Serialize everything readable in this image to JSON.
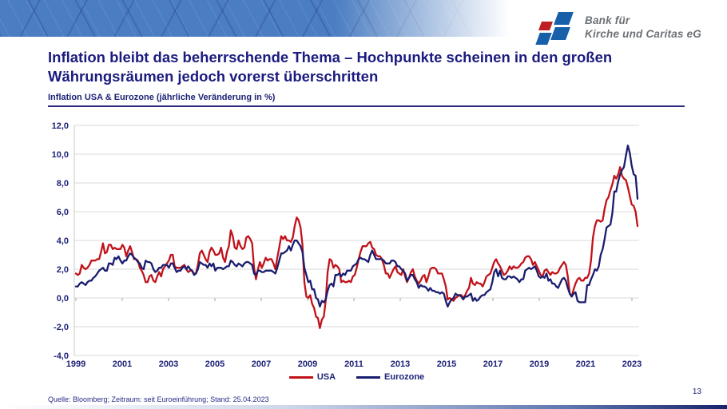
{
  "banner": {
    "logo_line1": "Bank für",
    "logo_line2": "Kirche und Caritas eG"
  },
  "slide": {
    "title": "Inflation bleibt das beherrschende Thema – Hochpunkte scheinen in den großen Währungsräumen jedoch vorerst überschritten",
    "source": "Quelle: Bloomberg; Zeitraum: seit Euroeinführung; Stand: 25.04.2023",
    "page_number": "13"
  },
  "colors": {
    "banner_blue": "#4b7dc2",
    "headline_navy": "#1b1b80",
    "usa_red": "#c1121a",
    "eurozone_navy": "#1a1d6e",
    "logo_red": "#bd1f22",
    "logo_blue": "#175fa9",
    "gridline_gray": "#d9d9d9"
  },
  "chart_data": {
    "type": "line",
    "title": "Inflation USA & Eurozone (jährliche Veränderung in %)",
    "x_unit": "monthly, Jan 1999 – Mar 2023",
    "x_ticks": [
      "1999",
      "2001",
      "2003",
      "2005",
      "2007",
      "2009",
      "2011",
      "2013",
      "2015",
      "2017",
      "2019",
      "2021",
      "2023"
    ],
    "y_ticks": [
      "12,0",
      "10,0",
      "8,0",
      "6,0",
      "4,0",
      "2,0",
      "0,0",
      "-2,0",
      "-4,0"
    ],
    "ylim": [
      -4,
      12
    ],
    "grid": true,
    "legend_position": "bottom",
    "series": [
      {
        "name": "USA",
        "color": "#c1121a",
        "values": [
          1.7,
          1.6,
          1.7,
          2.3,
          2.1,
          2.0,
          2.1,
          2.3,
          2.6,
          2.6,
          2.6,
          2.7,
          2.7,
          3.2,
          3.8,
          3.1,
          3.2,
          3.7,
          3.7,
          3.4,
          3.5,
          3.4,
          3.4,
          3.4,
          3.7,
          3.5,
          2.9,
          3.3,
          3.6,
          3.2,
          2.7,
          2.7,
          2.6,
          2.1,
          1.9,
          1.6,
          1.1,
          1.1,
          1.5,
          1.6,
          1.2,
          1.1,
          1.5,
          1.8,
          1.5,
          2.0,
          2.2,
          2.4,
          2.6,
          3.0,
          3.0,
          2.2,
          2.1,
          2.1,
          2.1,
          2.2,
          2.3,
          2.0,
          1.8,
          1.9,
          1.9,
          1.7,
          1.7,
          2.3,
          3.1,
          3.3,
          3.0,
          2.7,
          2.5,
          3.2,
          3.5,
          3.3,
          3.0,
          3.0,
          3.1,
          3.5,
          2.8,
          2.5,
          3.2,
          3.6,
          4.7,
          4.3,
          3.5,
          3.4,
          4.0,
          3.6,
          3.4,
          3.5,
          4.2,
          4.3,
          4.1,
          3.8,
          2.1,
          1.3,
          2.0,
          2.5,
          2.1,
          2.4,
          2.8,
          2.6,
          2.7,
          2.7,
          2.4,
          2.0,
          2.8,
          3.5,
          4.3,
          4.1,
          4.3,
          4.0,
          4.0,
          3.9,
          4.2,
          5.0,
          5.6,
          5.4,
          4.9,
          3.7,
          1.1,
          0.1,
          0.0,
          0.2,
          -0.4,
          -0.7,
          -1.3,
          -1.4,
          -2.1,
          -1.5,
          -1.3,
          -0.2,
          1.8,
          2.7,
          2.6,
          2.1,
          2.3,
          2.2,
          2.0,
          1.1,
          1.2,
          1.1,
          1.1,
          1.2,
          1.1,
          1.5,
          1.6,
          2.1,
          2.7,
          3.2,
          3.6,
          3.6,
          3.6,
          3.8,
          3.9,
          3.5,
          3.4,
          3.0,
          2.9,
          2.9,
          2.7,
          2.3,
          1.7,
          1.7,
          1.4,
          1.7,
          2.0,
          2.2,
          1.8,
          1.7,
          1.6,
          2.0,
          1.5,
          1.1,
          1.4,
          1.8,
          2.0,
          1.5,
          1.2,
          1.0,
          1.2,
          1.5,
          1.6,
          1.1,
          1.5,
          2.0,
          2.1,
          2.1,
          2.0,
          1.7,
          1.7,
          1.7,
          1.3,
          0.8,
          -0.1,
          0.0,
          -0.1,
          -0.2,
          0.0,
          0.1,
          0.2,
          0.2,
          0.0,
          0.2,
          0.5,
          0.7,
          1.4,
          1.0,
          0.9,
          1.1,
          1.0,
          1.0,
          0.8,
          1.1,
          1.5,
          1.6,
          1.7,
          2.1,
          2.5,
          2.7,
          2.4,
          2.2,
          1.9,
          1.6,
          1.7,
          1.9,
          2.2,
          2.0,
          2.2,
          2.1,
          2.1,
          2.2,
          2.4,
          2.5,
          2.8,
          2.9,
          2.9,
          2.7,
          2.3,
          2.5,
          2.2,
          1.9,
          1.6,
          1.5,
          1.9,
          2.0,
          1.8,
          1.6,
          1.8,
          1.7,
          1.7,
          1.8,
          2.1,
          2.3,
          2.5,
          2.3,
          1.5,
          0.3,
          0.1,
          0.6,
          1.0,
          1.3,
          1.4,
          1.2,
          1.2,
          1.4,
          1.4,
          1.7,
          2.6,
          4.2,
          5.0,
          5.4,
          5.4,
          5.3,
          5.4,
          6.2,
          6.8,
          7.0,
          7.5,
          7.9,
          8.5,
          8.3,
          8.6,
          9.1,
          8.5,
          8.3,
          8.2,
          7.7,
          7.1,
          6.5,
          6.4,
          6.0,
          5.0
        ]
      },
      {
        "name": "Eurozone",
        "color": "#1a1d6e",
        "values": [
          0.8,
          0.8,
          1.0,
          1.1,
          1.0,
          0.9,
          1.1,
          1.2,
          1.2,
          1.4,
          1.5,
          1.7,
          1.9,
          2.0,
          2.1,
          1.9,
          1.9,
          2.4,
          2.4,
          2.3,
          2.8,
          2.7,
          2.9,
          2.6,
          2.4,
          2.6,
          2.6,
          2.9,
          3.1,
          3.0,
          2.8,
          2.7,
          2.5,
          2.4,
          2.1,
          2.0,
          2.6,
          2.5,
          2.5,
          2.4,
          2.0,
          1.8,
          1.9,
          2.1,
          2.1,
          2.3,
          2.3,
          2.3,
          2.1,
          2.4,
          2.4,
          2.1,
          1.8,
          1.9,
          1.9,
          2.1,
          2.2,
          2.0,
          2.2,
          2.0,
          1.9,
          1.6,
          1.7,
          2.0,
          2.5,
          2.4,
          2.3,
          2.3,
          2.1,
          2.4,
          2.2,
          2.4,
          1.9,
          2.1,
          2.1,
          2.1,
          2.0,
          2.1,
          2.2,
          2.2,
          2.6,
          2.5,
          2.3,
          2.2,
          2.4,
          2.3,
          2.2,
          2.4,
          2.5,
          2.5,
          2.4,
          2.3,
          1.7,
          1.6,
          1.9,
          1.9,
          1.8,
          1.8,
          1.9,
          1.9,
          1.9,
          1.9,
          1.8,
          1.7,
          2.1,
          2.6,
          3.1,
          3.1,
          3.2,
          3.3,
          3.6,
          3.3,
          3.7,
          4.0,
          4.0,
          3.8,
          3.6,
          3.2,
          2.1,
          1.6,
          1.1,
          1.2,
          0.6,
          0.6,
          0.0,
          -0.1,
          -0.6,
          -0.2,
          -0.3,
          -0.1,
          0.5,
          0.9,
          1.0,
          0.8,
          1.6,
          1.6,
          1.7,
          1.5,
          1.7,
          1.6,
          1.9,
          1.9,
          1.9,
          2.2,
          2.3,
          2.4,
          2.7,
          2.8,
          2.7,
          2.7,
          2.6,
          2.5,
          3.0,
          3.3,
          3.0,
          2.7,
          2.7,
          2.7,
          2.7,
          2.6,
          2.4,
          2.4,
          2.4,
          2.6,
          2.6,
          2.5,
          2.2,
          2.2,
          2.0,
          1.9,
          1.7,
          1.2,
          1.4,
          1.6,
          1.6,
          1.3,
          1.1,
          0.7,
          0.9,
          0.8,
          0.8,
          0.7,
          0.5,
          0.7,
          0.5,
          0.5,
          0.4,
          0.4,
          0.3,
          0.4,
          0.3,
          -0.2,
          -0.6,
          -0.3,
          -0.1,
          0.0,
          0.3,
          0.2,
          0.2,
          0.1,
          -0.1,
          0.1,
          0.1,
          0.2,
          0.3,
          -0.2,
          0.0,
          -0.2,
          -0.1,
          0.1,
          0.2,
          0.2,
          0.4,
          0.5,
          0.6,
          1.1,
          1.8,
          2.0,
          1.5,
          1.9,
          1.4,
          1.3,
          1.3,
          1.5,
          1.5,
          1.4,
          1.5,
          1.4,
          1.3,
          1.1,
          1.3,
          1.3,
          1.9,
          2.0,
          2.1,
          2.0,
          2.1,
          2.2,
          1.9,
          1.5,
          1.4,
          1.5,
          1.4,
          1.7,
          1.2,
          1.3,
          1.0,
          1.0,
          0.8,
          0.7,
          1.0,
          1.3,
          1.4,
          1.2,
          0.7,
          0.3,
          0.1,
          0.3,
          0.4,
          -0.2,
          -0.3,
          -0.3,
          -0.3,
          -0.3,
          0.9,
          0.9,
          1.3,
          1.6,
          2.0,
          1.9,
          2.2,
          3.0,
          3.4,
          4.1,
          4.9,
          5.0,
          5.1,
          5.9,
          7.4,
          7.4,
          8.1,
          8.6,
          8.9,
          9.1,
          9.9,
          10.6,
          10.1,
          9.2,
          8.6,
          8.5,
          6.9
        ]
      }
    ]
  }
}
